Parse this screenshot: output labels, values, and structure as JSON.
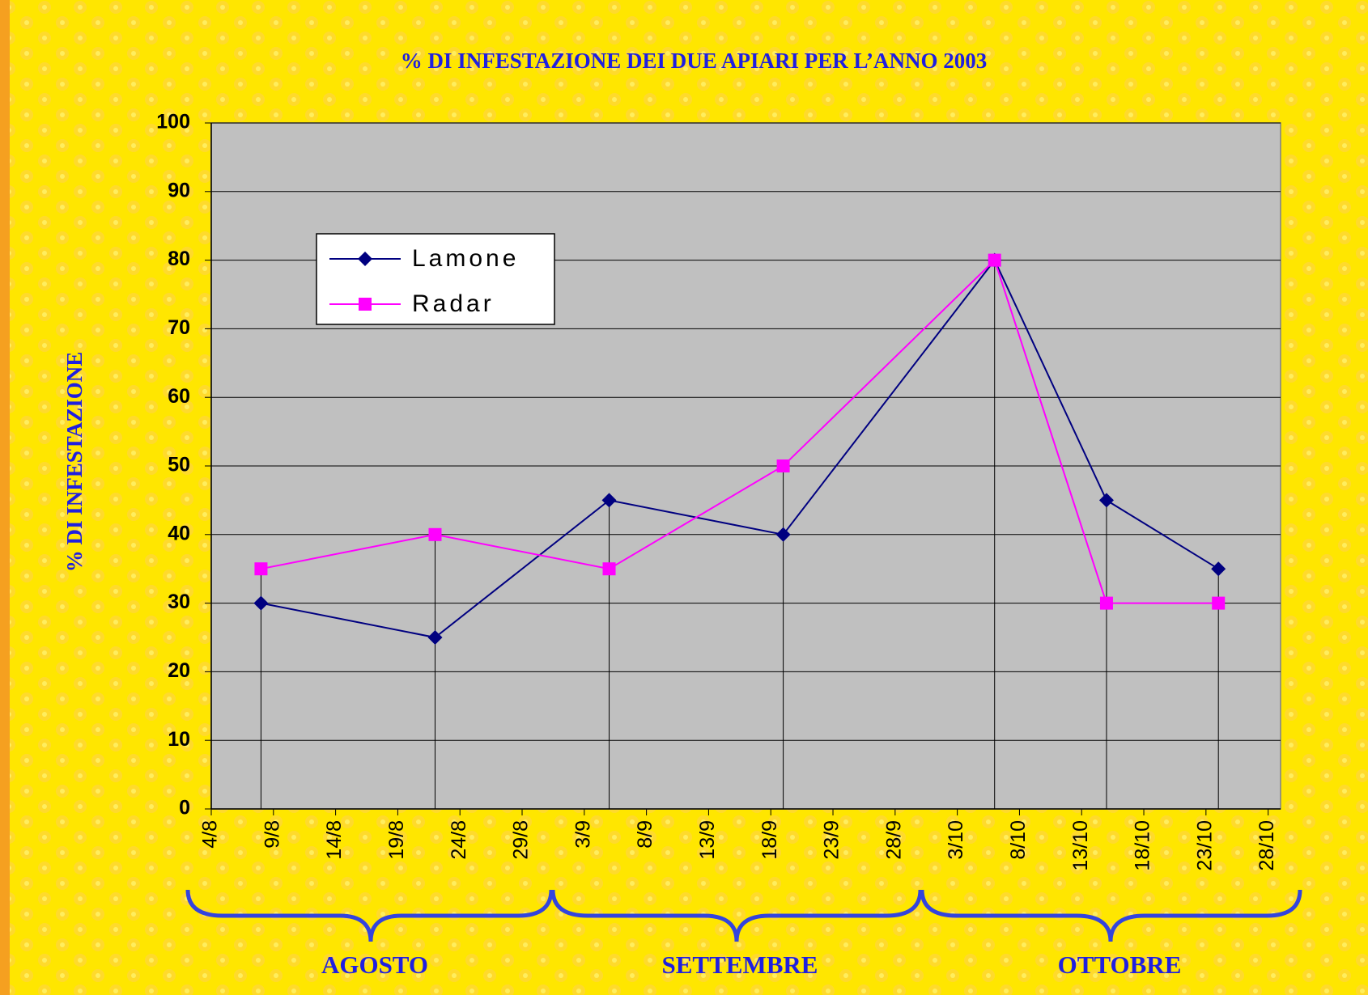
{
  "chart_data": {
    "type": "line",
    "title": "% DI INFESTAZIONE DEI DUE APIARI PER L’ANNO 2003",
    "y_label": "% DI INFESTAZIONE",
    "x": [
      "8/8",
      "22/8",
      "5/9",
      "19/9",
      "6/10",
      "15/10",
      "24/10"
    ],
    "series": [
      {
        "name": "Lamone",
        "color": "#000080",
        "marker": "diamond",
        "values": [
          30,
          25,
          45,
          40,
          80,
          45,
          35
        ]
      },
      {
        "name": "Radar",
        "color": "#ff00ff",
        "marker": "square",
        "values": [
          35,
          40,
          35,
          50,
          80,
          30,
          30
        ]
      }
    ],
    "xlim": [
      "4/8",
      "29/10"
    ],
    "xticks": [
      "4/8",
      "9/8",
      "14/8",
      "19/8",
      "24/8",
      "29/8",
      "3/9",
      "8/9",
      "13/9",
      "18/9",
      "23/9",
      "28/9",
      "3/10",
      "8/10",
      "13/10",
      "18/10",
      "23/10",
      "28/10"
    ],
    "ylim": [
      0,
      100
    ],
    "yticks": [
      0,
      10,
      20,
      30,
      40,
      50,
      60,
      70,
      80,
      90,
      100
    ],
    "grid": true,
    "legend": "upper-left",
    "month_labels": [
      "AGOSTO",
      "SETTEMBRE",
      "OTTOBRE"
    ]
  }
}
